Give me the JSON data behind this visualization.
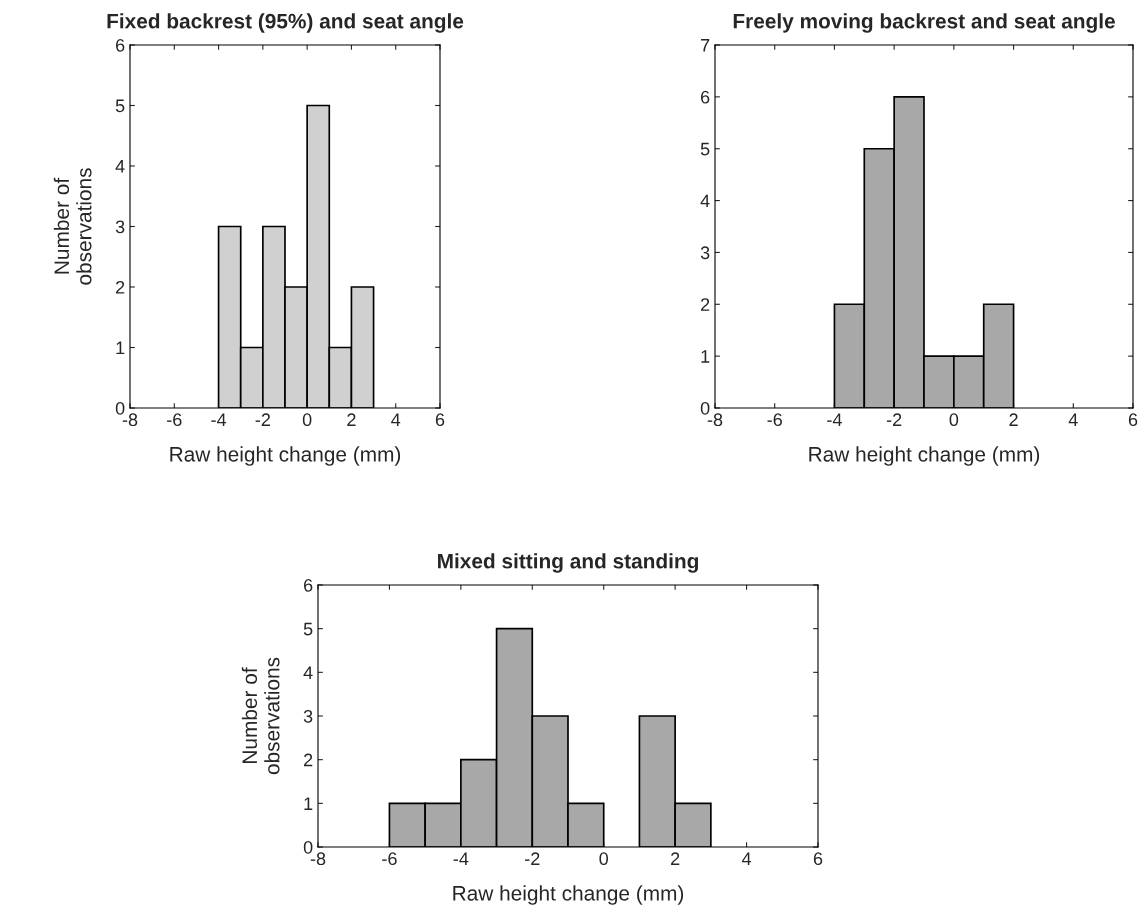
{
  "chart_data": [
    {
      "type": "histogram",
      "title": "Fixed backrest (95%) and seat angle",
      "xlabel": "Raw height change (mm)",
      "ylabel": "Number of\nobservations",
      "bins": [
        -4,
        -3,
        -2,
        -1,
        0,
        1,
        2,
        3
      ],
      "values": [
        3,
        1,
        3,
        2,
        5,
        1,
        2
      ],
      "color": "#d0d0d0",
      "xlim": [
        -8,
        6
      ],
      "xticks": [
        -8,
        -6,
        -4,
        -2,
        0,
        2,
        4,
        6
      ],
      "ylim": [
        0,
        6
      ],
      "yticks": [
        0,
        1,
        2,
        3,
        4,
        5,
        6
      ],
      "grid": false
    },
    {
      "type": "histogram",
      "title": "Freely moving backrest and seat angle",
      "xlabel": "Raw height change (mm)",
      "bins": [
        -4,
        -3,
        -2,
        -1,
        0,
        1,
        2
      ],
      "values": [
        2,
        5,
        6,
        1,
        1,
        2
      ],
      "color": "#a8a8a8",
      "xlim": [
        -8,
        6
      ],
      "xticks": [
        -8,
        -6,
        -4,
        -2,
        0,
        2,
        4,
        6
      ],
      "ylim": [
        0,
        7
      ],
      "yticks": [
        0,
        1,
        2,
        3,
        4,
        5,
        6,
        7
      ],
      "grid": false
    },
    {
      "type": "histogram",
      "title": "Mixed sitting and standing",
      "xlabel": "Raw height change (mm)",
      "ylabel": "Number of\nobservations",
      "bins": [
        -6,
        -5,
        -4,
        -3,
        -2,
        -1,
        0,
        1,
        2,
        3
      ],
      "values": [
        1,
        1,
        2,
        5,
        3,
        1,
        0,
        3,
        1
      ],
      "color": "#a8a8a8",
      "xlim": [
        -8,
        6
      ],
      "xticks": [
        -8,
        -6,
        -4,
        -2,
        0,
        2,
        4,
        6
      ],
      "ylim": [
        0,
        6
      ],
      "yticks": [
        0,
        1,
        2,
        3,
        4,
        5,
        6
      ],
      "grid": false
    }
  ]
}
